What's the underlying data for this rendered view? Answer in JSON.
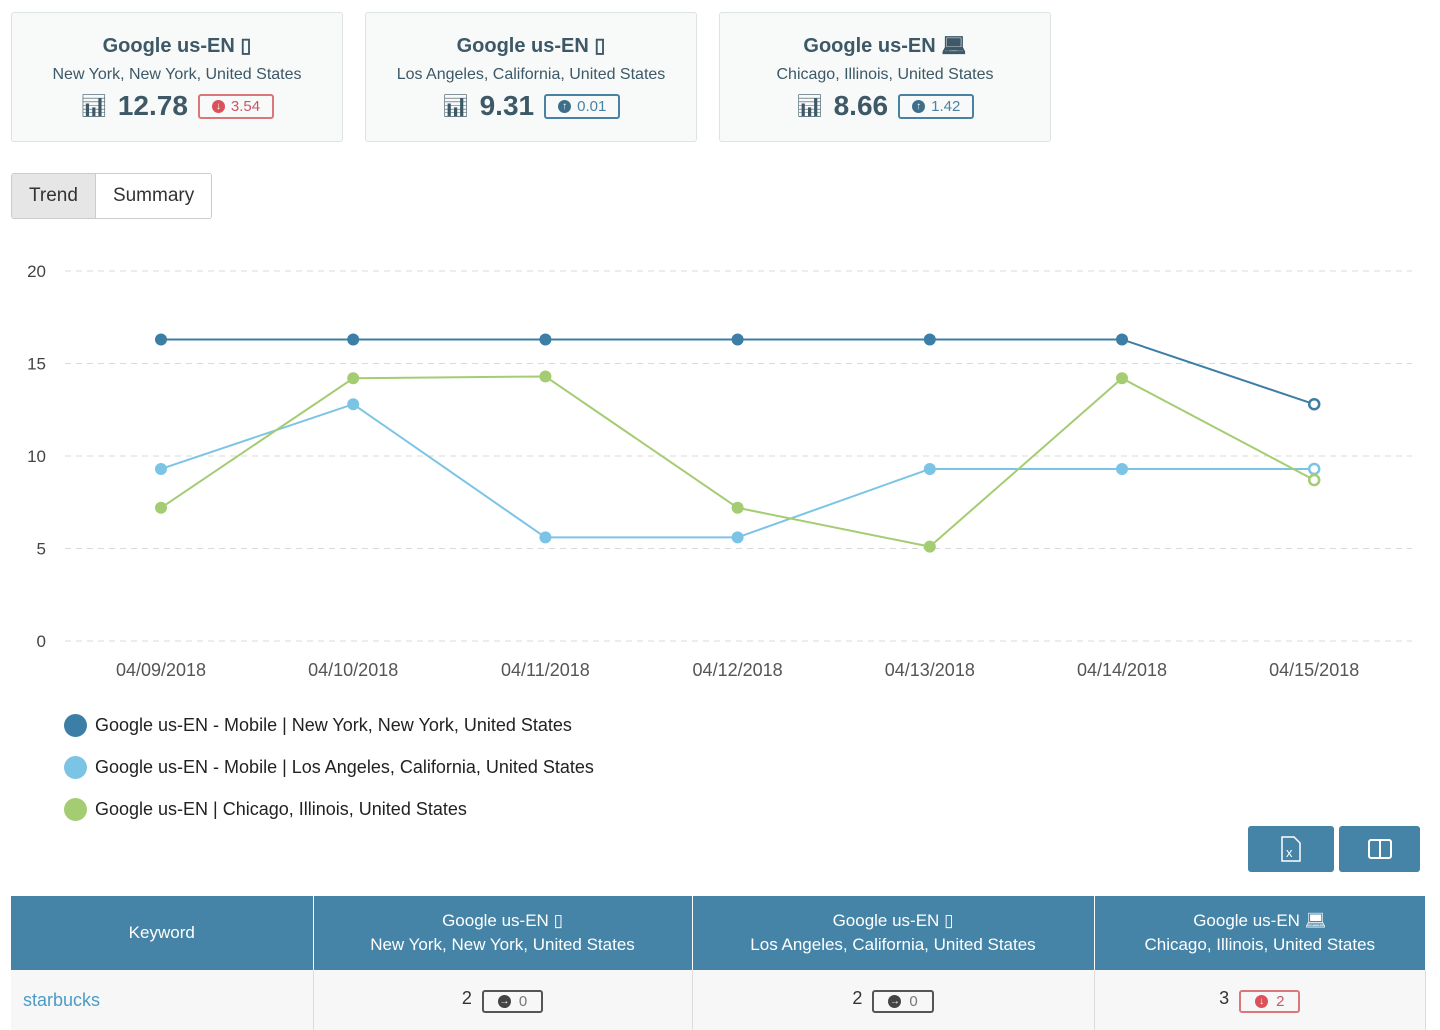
{
  "cards": [
    {
      "title": "Google us-EN",
      "device": "mobile-icon",
      "location": "New York, New York, United States",
      "value": "12.78",
      "change": "3.54",
      "direction": "down"
    },
    {
      "title": "Google us-EN",
      "device": "mobile-icon",
      "location": "Los Angeles, California, United States",
      "value": "9.31",
      "change": "0.01",
      "direction": "up"
    },
    {
      "title": "Google us-EN",
      "device": "laptop-icon",
      "location": "Chicago, Illinois, United States",
      "value": "8.66",
      "change": "1.42",
      "direction": "up"
    }
  ],
  "tabs": [
    "Trend",
    "Summary"
  ],
  "chart_data": {
    "type": "line",
    "categories": [
      "04/09/2018",
      "04/10/2018",
      "04/11/2018",
      "04/12/2018",
      "04/13/2018",
      "04/14/2018",
      "04/15/2018"
    ],
    "ylim": [
      0,
      20
    ],
    "yticks": [
      "0",
      "5",
      "10",
      "15",
      "20"
    ],
    "series": [
      {
        "name": "Google us-EN - Mobile | New York, New York, United States",
        "color": "#3d7ea6",
        "values": [
          16.3,
          16.3,
          16.3,
          16.3,
          16.3,
          16.3,
          12.8
        ]
      },
      {
        "name": "Google us-EN - Mobile | Los Angeles, California, United States",
        "color": "#7cc4e6",
        "values": [
          9.3,
          12.8,
          5.6,
          5.6,
          9.3,
          9.3,
          9.3
        ]
      },
      {
        "name": "Google us-EN | Chicago, Illinois, United States",
        "color": "#a4cc72",
        "values": [
          7.2,
          14.2,
          14.3,
          7.2,
          5.1,
          14.2,
          8.7
        ]
      }
    ]
  },
  "table": {
    "headers": [
      {
        "title": "Keyword"
      },
      {
        "title": "Google us-EN",
        "location": "New York, New York, United States"
      },
      {
        "title": "Google us-EN",
        "location": "Los Angeles, California, United States"
      },
      {
        "title": "Google us-EN",
        "location": "Chicago, Illinois, United States"
      }
    ],
    "rows": [
      {
        "keyword": "starbucks",
        "cells": [
          {
            "rank": "2",
            "change": "0"
          },
          {
            "rank": "2",
            "change": "0"
          },
          {
            "rank": "3",
            "change": "2"
          }
        ]
      }
    ]
  }
}
